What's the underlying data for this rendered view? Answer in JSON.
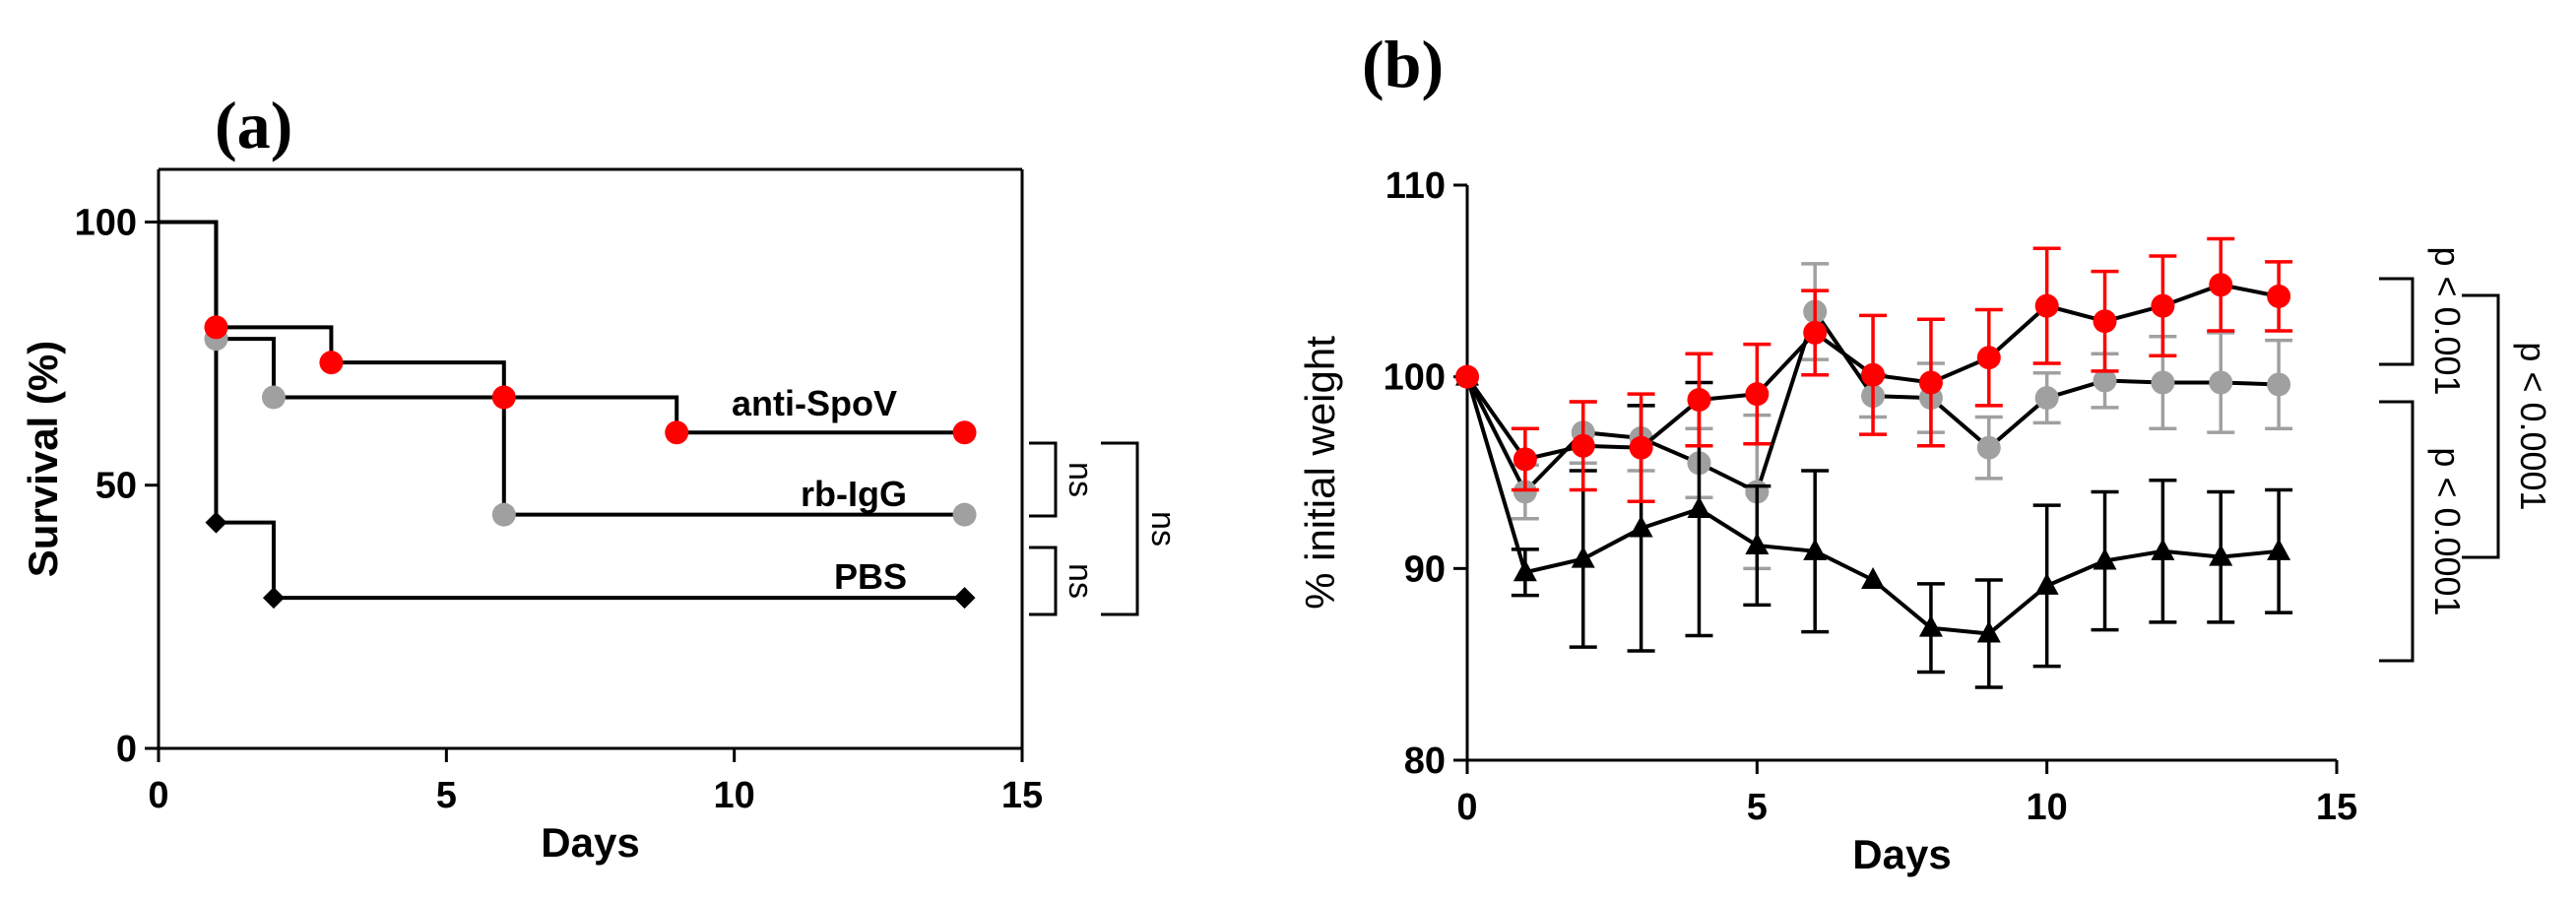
{
  "panel_a_label": "(a)",
  "panel_b_label": "(b)",
  "colors": {
    "anti_spov": "#ff0000",
    "rb_igg": "#a0a0a0",
    "pbs": "#000000",
    "axis": "#000000"
  },
  "chart_data": [
    {
      "type": "line",
      "subtype": "kaplan-meier",
      "title": "",
      "xlabel": "Days",
      "ylabel": "Survival (%)",
      "xlim": [
        0,
        15
      ],
      "ylim": [
        0,
        110
      ],
      "xticks": [
        0,
        5,
        10,
        15
      ],
      "yticks": [
        0,
        50,
        100
      ],
      "series": [
        {
          "name": "anti-SpoV",
          "color": "#ff0000",
          "marker": "circle",
          "steps": [
            [
              0,
              100
            ],
            [
              1,
              80
            ],
            [
              3,
              73.3
            ],
            [
              6,
              66.7
            ],
            [
              9,
              60
            ],
            [
              14,
              60
            ]
          ],
          "markers": [
            [
              1,
              80
            ],
            [
              3,
              73.3
            ],
            [
              6,
              66.7
            ],
            [
              9,
              60
            ],
            [
              14,
              60
            ]
          ]
        },
        {
          "name": "rb-IgG",
          "color": "#a0a0a0",
          "marker": "circle",
          "steps": [
            [
              0,
              100
            ],
            [
              1,
              77.8
            ],
            [
              2,
              66.7
            ],
            [
              6,
              44.4
            ],
            [
              14,
              44.4
            ]
          ],
          "markers": [
            [
              1,
              77.8
            ],
            [
              2,
              66.7
            ],
            [
              6,
              44.4
            ],
            [
              14,
              44.4
            ]
          ]
        },
        {
          "name": "PBS",
          "color": "#000000",
          "marker": "diamond",
          "steps": [
            [
              0,
              100
            ],
            [
              1,
              42.9
            ],
            [
              2,
              28.6
            ],
            [
              14,
              28.6
            ]
          ],
          "markers": [
            [
              1,
              42.9
            ],
            [
              2,
              28.6
            ],
            [
              14,
              28.6
            ]
          ]
        }
      ],
      "comparisons": [
        {
          "pair": [
            "anti-SpoV",
            "rb-IgG"
          ],
          "label": "ns"
        },
        {
          "pair": [
            "rb-IgG",
            "PBS"
          ],
          "label": "ns"
        },
        {
          "pair": [
            "anti-SpoV",
            "PBS"
          ],
          "label": "ns"
        }
      ]
    },
    {
      "type": "line",
      "subtype": "error-bars",
      "title": "",
      "xlabel": "Days",
      "ylabel": "% initial weight",
      "xlim": [
        0,
        15
      ],
      "ylim": [
        80,
        110
      ],
      "xticks": [
        0,
        5,
        10,
        15
      ],
      "yticks": [
        80,
        90,
        100,
        110
      ],
      "x": [
        0,
        1,
        2,
        3,
        4,
        5,
        6,
        7,
        8,
        9,
        10,
        11,
        12,
        13,
        14
      ],
      "series": [
        {
          "name": "anti-SpoV",
          "color": "#ff0000",
          "marker": "circle",
          "values": [
            100,
            95.7,
            96.4,
            96.3,
            98.8,
            99.1,
            102.3,
            100.1,
            99.7,
            101.0,
            103.7,
            102.9,
            103.7,
            104.8,
            104.2
          ],
          "errors": [
            0,
            1.6,
            2.3,
            2.8,
            2.4,
            2.6,
            2.2,
            3.1,
            3.3,
            2.5,
            3.0,
            2.6,
            2.6,
            2.4,
            1.8
          ]
        },
        {
          "name": "rb-IgG",
          "color": "#a0a0a0",
          "marker": "circle",
          "values": [
            100,
            94.0,
            97.1,
            96.8,
            95.5,
            94.0,
            103.4,
            99.0,
            98.9,
            96.3,
            98.9,
            99.8,
            99.7,
            99.7,
            99.6
          ],
          "errors": [
            0,
            1.4,
            1.6,
            1.7,
            1.8,
            4.0,
            2.5,
            1.1,
            1.8,
            1.6,
            1.3,
            1.4,
            2.4,
            2.6,
            2.3
          ]
        },
        {
          "name": "PBS",
          "color": "#000000",
          "marker": "triangle",
          "values": [
            100,
            89.8,
            90.5,
            92.1,
            93.1,
            91.2,
            90.9,
            89.4,
            86.9,
            86.6,
            89.1,
            90.4,
            90.9,
            90.6,
            90.9
          ],
          "errors": [
            0,
            1.2,
            4.6,
            6.4,
            6.6,
            3.1,
            4.2,
            0,
            2.3,
            2.8,
            4.2,
            3.6,
            3.7,
            3.4,
            3.2
          ]
        }
      ],
      "comparisons": [
        {
          "pair": [
            "anti-SpoV",
            "rb-IgG"
          ],
          "label": "p < 0.001"
        },
        {
          "pair": [
            "anti-SpoV",
            "PBS"
          ],
          "label": "p < 0.0001"
        },
        {
          "pair": [
            "rb-IgG",
            "PBS"
          ],
          "label": "p < 0.0001"
        }
      ]
    }
  ]
}
